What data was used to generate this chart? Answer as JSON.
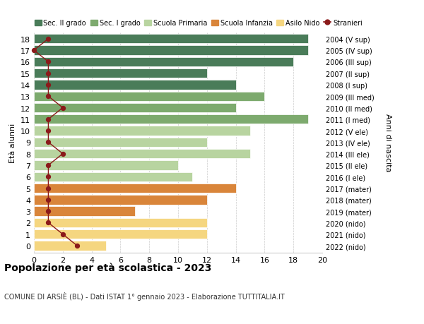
{
  "ages": [
    18,
    17,
    16,
    15,
    14,
    13,
    12,
    11,
    10,
    9,
    8,
    7,
    6,
    5,
    4,
    3,
    2,
    1,
    0
  ],
  "right_labels": [
    "2004 (V sup)",
    "2005 (IV sup)",
    "2006 (III sup)",
    "2007 (II sup)",
    "2008 (I sup)",
    "2009 (III med)",
    "2010 (II med)",
    "2011 (I med)",
    "2012 (V ele)",
    "2013 (IV ele)",
    "2014 (III ele)",
    "2015 (II ele)",
    "2016 (I ele)",
    "2017 (mater)",
    "2018 (mater)",
    "2019 (mater)",
    "2020 (nido)",
    "2021 (nido)",
    "2022 (nido)"
  ],
  "bar_values": [
    19,
    19,
    18,
    12,
    14,
    16,
    14,
    19,
    15,
    12,
    15,
    10,
    11,
    14,
    12,
    7,
    12,
    12,
    5
  ],
  "bar_colors": [
    "#4a7c59",
    "#4a7c59",
    "#4a7c59",
    "#4a7c59",
    "#4a7c59",
    "#7daa6e",
    "#7daa6e",
    "#7daa6e",
    "#b8d4a0",
    "#b8d4a0",
    "#b8d4a0",
    "#b8d4a0",
    "#b8d4a0",
    "#d9853a",
    "#d9853a",
    "#d9853a",
    "#f5d680",
    "#f5d680",
    "#f5d680"
  ],
  "stranieri_values": [
    1,
    0,
    1,
    1,
    1,
    1,
    2,
    1,
    1,
    1,
    2,
    1,
    1,
    1,
    1,
    1,
    1,
    2,
    3
  ],
  "stranieri_color": "#8b1a1a",
  "legend_labels": [
    "Sec. II grado",
    "Sec. I grado",
    "Scuola Primaria",
    "Scuola Infanzia",
    "Asilo Nido",
    "Stranieri"
  ],
  "legend_colors": [
    "#4a7c59",
    "#7daa6e",
    "#b8d4a0",
    "#d9853a",
    "#f5d680",
    "#8b1a1a"
  ],
  "title": "Popolazione per età scolastica - 2023",
  "subtitle": "COMUNE DI ARSIÈ (BL) - Dati ISTAT 1° gennaio 2023 - Elaborazione TUTTITALIA.IT",
  "xlabel_right": "Anni di nascita",
  "ylabel": "Età alunni",
  "xlim": [
    0,
    20
  ],
  "bar_height": 0.82,
  "bg_color": "#ffffff",
  "grid_color": "#cccccc"
}
